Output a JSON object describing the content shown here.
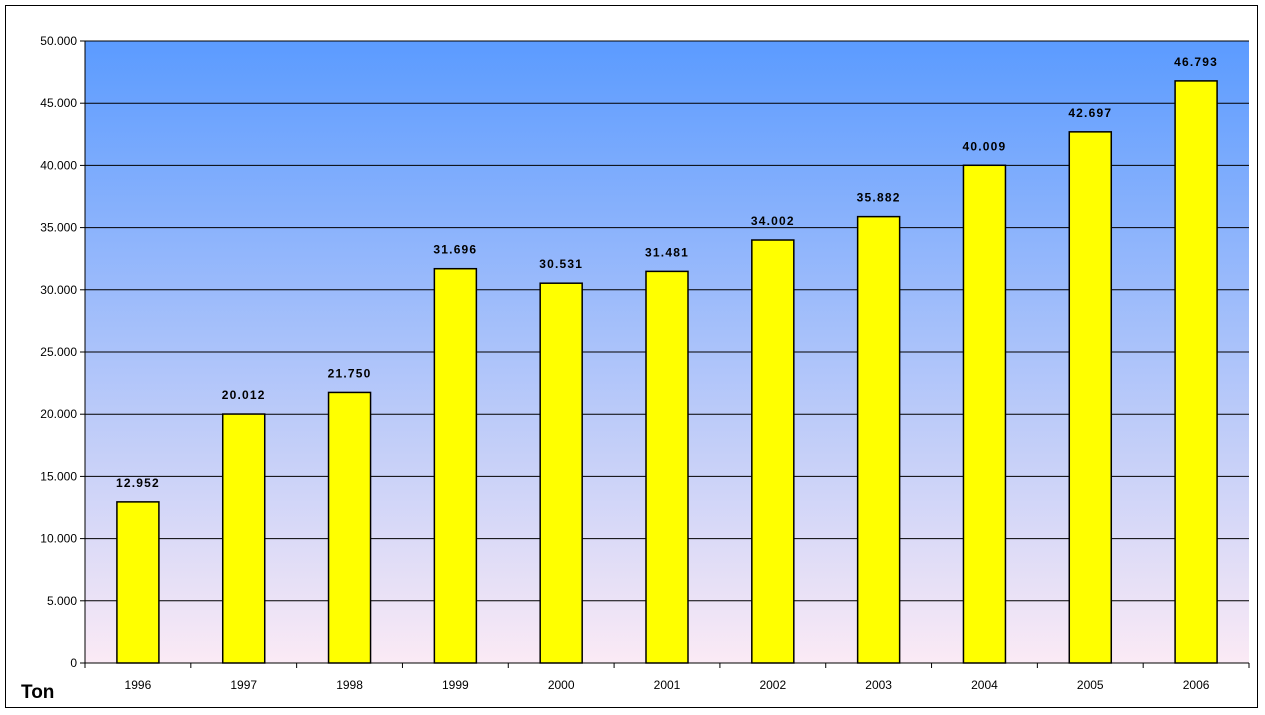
{
  "chart_data": {
    "type": "bar",
    "title": "",
    "xlabel": "",
    "ylabel": "Ton",
    "categories": [
      "1996",
      "1997",
      "1998",
      "1999",
      "2000",
      "2001",
      "2002",
      "2003",
      "2004",
      "2005",
      "2006"
    ],
    "values": [
      12952,
      20012,
      21750,
      31696,
      30531,
      31481,
      34002,
      35882,
      40009,
      42697,
      46793
    ],
    "data_labels": [
      "12.952",
      "20.012",
      "21.750",
      "31.696",
      "30.531",
      "31.481",
      "34.002",
      "35.882",
      "40.009",
      "42.697",
      "46.793"
    ],
    "ylim": [
      0,
      50000
    ],
    "yticks": [
      0,
      5000,
      10000,
      15000,
      20000,
      25000,
      30000,
      35000,
      40000,
      45000,
      50000
    ],
    "ytick_labels": [
      "0",
      "5.000",
      "10.000",
      "15.000",
      "20.000",
      "25.000",
      "30.000",
      "35.000",
      "40.000",
      "45.000",
      "50.000"
    ],
    "grid": true,
    "legend": "none",
    "colors": {
      "bar_fill": "#ffff00",
      "bar_stroke": "#000000",
      "plot_background_top": "#5b9bff",
      "plot_background_bottom": "#fbeaf5",
      "gridline": "#000000"
    }
  }
}
